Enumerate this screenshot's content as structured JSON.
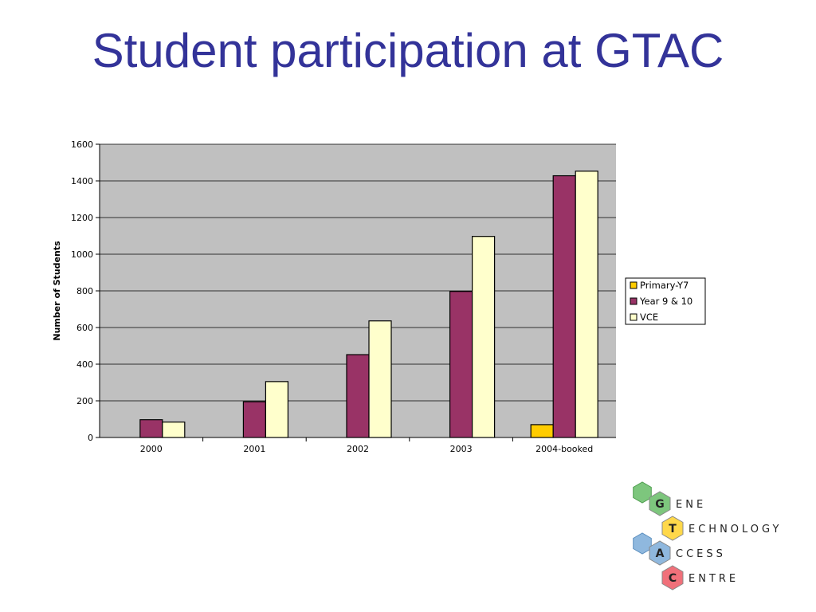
{
  "slide": {
    "title": "Student participation at GTAC"
  },
  "colors": {
    "title": "#333399",
    "plot_background": "#C0C0C0",
    "primary": "#FFCC00",
    "year9_10": "#993366",
    "vce": "#FFFFCC"
  },
  "chart_data": {
    "type": "bar",
    "categories": [
      "2000",
      "2001",
      "2002",
      "2003",
      "2004-booked"
    ],
    "series": [
      {
        "name": "Primary-Y7",
        "color": "#FFCC00",
        "values": [
          0,
          0,
          0,
          0,
          70
        ]
      },
      {
        "name": "Year 9 & 10",
        "color": "#993366",
        "values": [
          97,
          195,
          452,
          797,
          1428
        ]
      },
      {
        "name": "VCE",
        "color": "#FFFFCC",
        "values": [
          84,
          305,
          636,
          1097,
          1453
        ]
      }
    ],
    "ylabel": "Number of Students",
    "xlabel": "",
    "ylim": [
      0,
      1600
    ],
    "yticks": [
      "0",
      "200",
      "400",
      "600",
      "800",
      "1000",
      "1200",
      "1400",
      "1600"
    ],
    "grid": true,
    "legend_position": "right"
  },
  "logo": {
    "rows": [
      {
        "letter": "G",
        "rest": "ENE",
        "color": "#7DC67D"
      },
      {
        "letter": "T",
        "rest": "ECHNOLOGY",
        "color": "#FFD84A"
      },
      {
        "letter": "A",
        "rest": "CCESS",
        "color": "#8FB8DE"
      },
      {
        "letter": "C",
        "rest": "ENTRE",
        "color": "#F0707A"
      }
    ]
  }
}
